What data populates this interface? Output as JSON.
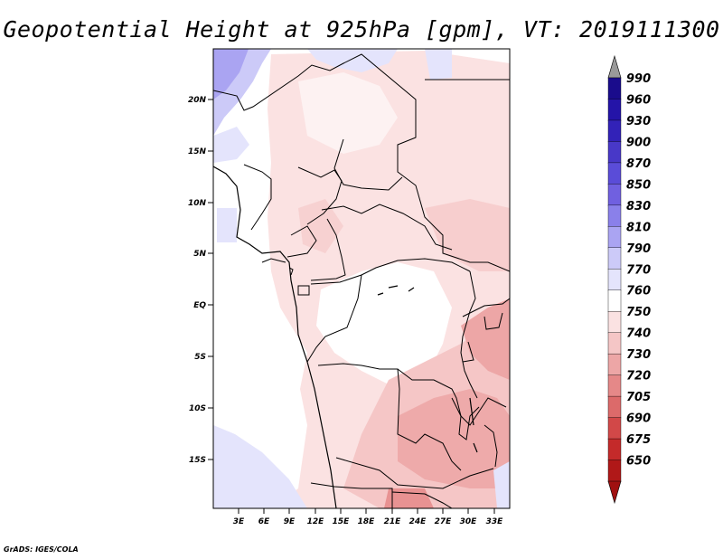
{
  "title": "Geopotential Height at 925hPa [gpm], VT: 2019111300",
  "credit": "GrADS: IGES/COLA",
  "map": {
    "lat_ticks": [
      "20N",
      "15N",
      "10N",
      "5N",
      "EQ",
      "5S",
      "10S",
      "15S"
    ],
    "lon_ticks": [
      "3E",
      "6E",
      "9E",
      "12E",
      "15E",
      "18E",
      "21E",
      "24E",
      "27E",
      "30E",
      "33E"
    ]
  },
  "colorbar": {
    "levels": [
      "990",
      "960",
      "930",
      "900",
      "870",
      "850",
      "830",
      "810",
      "790",
      "770",
      "760",
      "750",
      "740",
      "730",
      "720",
      "705",
      "690",
      "675",
      "650"
    ],
    "colors": [
      "#9a9a9a",
      "#1a0c8c",
      "#2414a8",
      "#3222b8",
      "#4838c8",
      "#5a4cd8",
      "#7060e0",
      "#8a80ea",
      "#aaa4f2",
      "#cccaf8",
      "#e4e4fc",
      "#ffffff",
      "#fbe2e2",
      "#f5c6c6",
      "#eda6a6",
      "#e58888",
      "#dc6a6a",
      "#d24848",
      "#c42a2a",
      "#b01818",
      "#a01010"
    ]
  }
}
